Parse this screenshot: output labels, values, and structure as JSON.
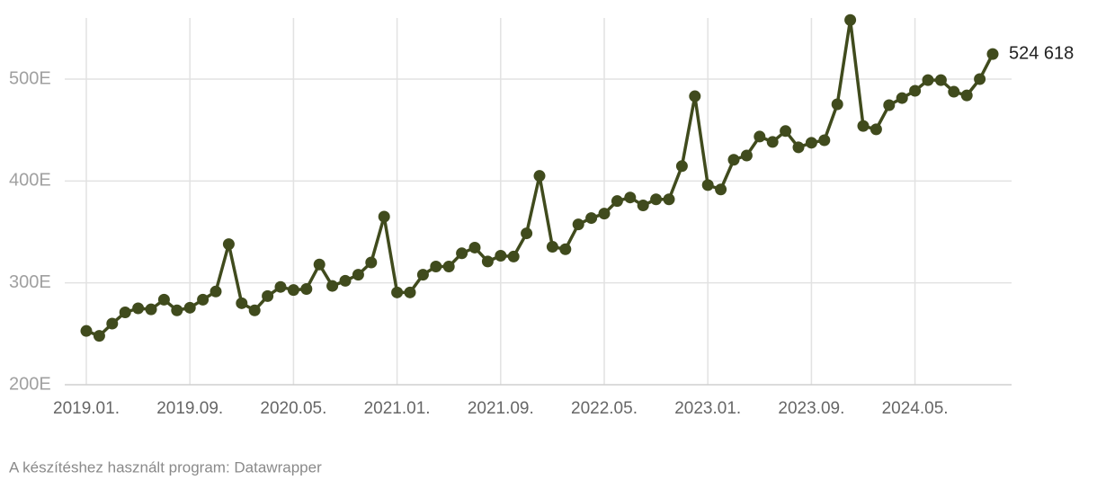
{
  "chart_data": {
    "type": "line",
    "categories": [
      "2019.01.",
      null,
      null,
      null,
      null,
      null,
      null,
      null,
      "2019.09.",
      null,
      null,
      null,
      null,
      null,
      null,
      null,
      "2020.05.",
      null,
      null,
      null,
      null,
      null,
      null,
      null,
      "2021.01.",
      null,
      null,
      null,
      null,
      null,
      null,
      null,
      "2021.09.",
      null,
      null,
      null,
      null,
      null,
      null,
      null,
      "2022.05.",
      null,
      null,
      null,
      null,
      null,
      null,
      null,
      "2023.01.",
      null,
      null,
      null,
      null,
      null,
      null,
      null,
      "2023.09.",
      null,
      null,
      null,
      null,
      null,
      null,
      null,
      "2024.05.",
      null,
      null,
      null,
      null,
      null,
      null
    ],
    "values": [
      252800,
      248000,
      260000,
      271000,
      275000,
      274000,
      283500,
      273000,
      275600,
      283500,
      291500,
      338000,
      280000,
      273000,
      287000,
      296000,
      293000,
      294000,
      318000,
      297000,
      302000,
      308000,
      320000,
      365000,
      290600,
      290600,
      308000,
      316000,
      316000,
      329000,
      334600,
      321000,
      326600,
      325800,
      348600,
      405000,
      335400,
      333000,
      357400,
      363600,
      368000,
      380300,
      383800,
      376000,
      382000,
      382000,
      414600,
      483200,
      396000,
      391700,
      420800,
      425000,
      443600,
      438300,
      449000,
      433000,
      437500,
      440000,
      475300,
      558000,
      454000,
      450700,
      474400,
      481400,
      488500,
      499000,
      499000,
      487600,
      484000,
      500000,
      524618
    ],
    "value_labels": [
      null,
      null,
      null,
      null,
      null,
      null,
      null,
      null,
      null,
      null,
      null,
      null,
      null,
      null,
      null,
      null,
      null,
      null,
      null,
      null,
      null,
      null,
      null,
      null,
      null,
      null,
      null,
      null,
      null,
      null,
      null,
      null,
      null,
      null,
      null,
      null,
      null,
      null,
      null,
      null,
      null,
      null,
      null,
      null,
      null,
      null,
      null,
      null,
      null,
      null,
      null,
      null,
      null,
      null,
      null,
      null,
      null,
      null,
      null,
      null,
      null,
      null,
      null,
      null,
      null,
      null,
      null,
      null,
      null,
      null,
      "524 618"
    ],
    "color": "#404b1d",
    "ylim": [
      200000,
      560000
    ],
    "yticks": [
      {
        "value": 200000,
        "label": "200E"
      },
      {
        "value": 300000,
        "label": "300E"
      },
      {
        "value": 400000,
        "label": "400E"
      },
      {
        "value": 500000,
        "label": "500E"
      }
    ],
    "grid": true,
    "source": "A készítéshez használt program: Datawrapper"
  }
}
